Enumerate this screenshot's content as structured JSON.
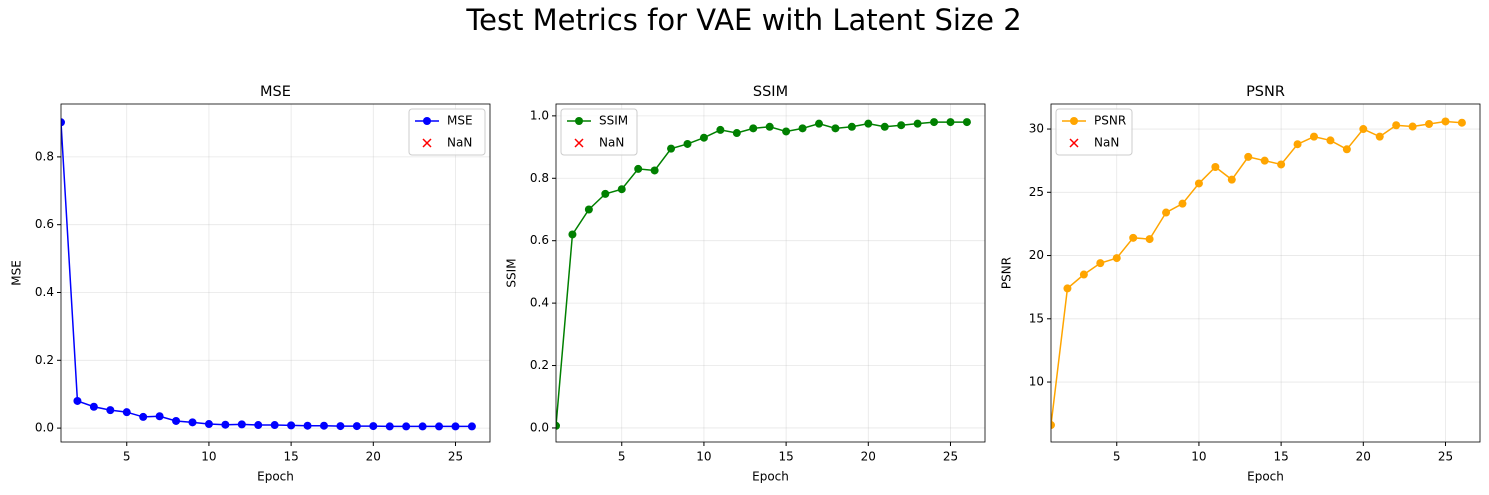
{
  "title": "Test Metrics for VAE with Latent Size 2",
  "chart_data": [
    {
      "type": "line",
      "title": "MSE",
      "xlabel": "Epoch",
      "ylabel": "MSE",
      "legend": "upper right",
      "grid": true,
      "x": [
        1,
        2,
        3,
        4,
        5,
        6,
        7,
        8,
        9,
        10,
        11,
        12,
        13,
        14,
        15,
        16,
        17,
        18,
        19,
        20,
        21,
        22,
        23,
        24,
        25,
        26
      ],
      "xlim": [
        1,
        27.1
      ],
      "xticks": [
        5,
        10,
        15,
        20,
        25
      ],
      "ylim": [
        -0.041,
        0.956
      ],
      "yticks": [
        {
          "value": 0,
          "label": "0.0"
        },
        0.2,
        0.4,
        0.6,
        0.8
      ],
      "series": [
        {
          "name": "MSE",
          "color": "#0000ff",
          "marker": "o",
          "values": [
            0.902,
            0.08,
            0.063,
            0.053,
            0.047,
            0.033,
            0.035,
            0.021,
            0.017,
            0.012,
            0.01,
            0.011,
            0.009,
            0.009,
            0.008,
            0.007,
            0.007,
            0.006,
            0.006,
            0.006,
            0.005,
            0.005,
            0.005,
            0.005,
            0.005,
            0.005
          ]
        },
        {
          "name": "NaN",
          "color": "#ff0000",
          "marker": "x",
          "values": [
            null,
            null,
            null,
            null,
            null,
            null,
            null,
            null,
            null,
            null,
            null,
            null,
            null,
            null,
            null,
            null,
            null,
            null,
            null,
            null,
            null,
            null,
            null,
            null,
            null,
            null
          ]
        }
      ]
    },
    {
      "type": "line",
      "title": "SSIM",
      "xlabel": "Epoch",
      "ylabel": "SSIM",
      "legend": "upper left",
      "grid": true,
      "x": [
        1,
        2,
        3,
        4,
        5,
        6,
        7,
        8,
        9,
        10,
        11,
        12,
        13,
        14,
        15,
        16,
        17,
        18,
        19,
        20,
        21,
        22,
        23,
        24,
        25,
        26
      ],
      "xlim": [
        1,
        27.1
      ],
      "xticks": [
        5,
        10,
        15,
        20,
        25
      ],
      "ylim": [
        -0.045,
        1.038
      ],
      "yticks": [
        {
          "value": 0,
          "label": "0.0"
        },
        0.2,
        0.4,
        0.6,
        0.8,
        {
          "value": 1,
          "label": "1.0"
        }
      ],
      "series": [
        {
          "name": "SSIM",
          "color": "#008000",
          "marker": "o",
          "values": [
            0.007,
            0.62,
            0.7,
            0.75,
            0.765,
            0.83,
            0.825,
            0.895,
            0.91,
            0.93,
            0.955,
            0.945,
            0.96,
            0.965,
            0.95,
            0.96,
            0.975,
            0.96,
            0.965,
            0.975,
            0.965,
            0.97,
            0.975,
            0.98,
            0.98,
            0.98
          ]
        },
        {
          "name": "NaN",
          "color": "#ff0000",
          "marker": "x",
          "values": [
            null,
            null,
            null,
            null,
            null,
            null,
            null,
            null,
            null,
            null,
            null,
            null,
            null,
            null,
            null,
            null,
            null,
            null,
            null,
            null,
            null,
            null,
            null,
            null,
            null,
            null
          ]
        }
      ]
    },
    {
      "type": "line",
      "title": "PSNR",
      "xlabel": "Epoch",
      "ylabel": "PSNR",
      "legend": "upper left",
      "grid": true,
      "x": [
        1,
        2,
        3,
        4,
        5,
        6,
        7,
        8,
        9,
        10,
        11,
        12,
        13,
        14,
        15,
        16,
        17,
        18,
        19,
        20,
        21,
        22,
        23,
        24,
        25,
        26
      ],
      "xlim": [
        1,
        27.1
      ],
      "xticks": [
        5,
        10,
        15,
        20,
        25
      ],
      "ylim": [
        5.26,
        31.98
      ],
      "yticks": [
        10,
        15,
        20,
        25,
        30
      ],
      "series": [
        {
          "name": "PSNR",
          "color": "#ffa500",
          "marker": "o",
          "values": [
            6.6,
            17.4,
            18.5,
            19.4,
            19.8,
            21.4,
            21.3,
            23.4,
            24.1,
            25.7,
            27.0,
            26.0,
            27.8,
            27.5,
            27.2,
            28.8,
            29.4,
            29.1,
            28.4,
            30.0,
            29.4,
            30.3,
            30.2,
            30.4,
            30.6,
            30.5
          ]
        },
        {
          "name": "NaN",
          "color": "#ff0000",
          "marker": "x",
          "values": [
            null,
            null,
            null,
            null,
            null,
            null,
            null,
            null,
            null,
            null,
            null,
            null,
            null,
            null,
            null,
            null,
            null,
            null,
            null,
            null,
            null,
            null,
            null,
            null,
            null,
            null
          ]
        }
      ]
    }
  ]
}
